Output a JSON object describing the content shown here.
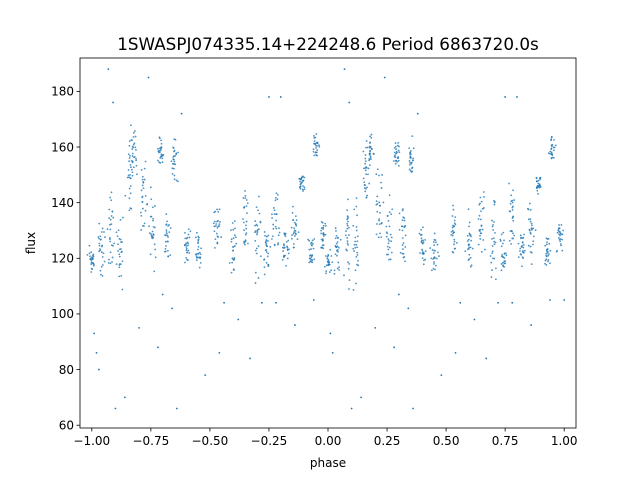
{
  "chart_data": {
    "type": "scatter",
    "title": "1SWASPJ074335.14+224248.6 Period 6863720.0s",
    "xlabel": "phase",
    "ylabel": "flux",
    "xlim": [
      -1.05,
      1.05
    ],
    "ylim": [
      59,
      192
    ],
    "xticks": [
      -1.0,
      -0.75,
      -0.5,
      -0.25,
      0.0,
      0.25,
      0.5,
      0.75,
      1.0
    ],
    "xtick_labels": [
      "−1.00",
      "−0.75",
      "−0.50",
      "−0.25",
      "0.00",
      "0.25",
      "0.50",
      "0.75",
      "1.00"
    ],
    "yticks": [
      60,
      80,
      100,
      120,
      140,
      160,
      180
    ],
    "ytick_labels": [
      "60",
      "80",
      "100",
      "120",
      "140",
      "160",
      "180"
    ],
    "grid": false,
    "marker_color": "#1f77b4",
    "series": [
      {
        "clusters": [
          {
            "x": -1.0,
            "y": 119,
            "spread": 4
          },
          {
            "x": -0.96,
            "y": 124,
            "spread": 8
          },
          {
            "x": -0.92,
            "y": 128,
            "spread": 12
          },
          {
            "x": -0.88,
            "y": 124,
            "spread": 10
          },
          {
            "x": -0.84,
            "y": 150,
            "spread": 12
          },
          {
            "x": -0.82,
            "y": 158,
            "spread": 6
          },
          {
            "x": -0.78,
            "y": 140,
            "spread": 10
          },
          {
            "x": -0.74,
            "y": 130,
            "spread": 10
          },
          {
            "x": -0.71,
            "y": 158,
            "spread": 4
          },
          {
            "x": -0.68,
            "y": 128,
            "spread": 8
          },
          {
            "x": -0.65,
            "y": 155,
            "spread": 6
          },
          {
            "x": -0.6,
            "y": 124,
            "spread": 6
          },
          {
            "x": -0.55,
            "y": 122,
            "spread": 6
          },
          {
            "x": -0.47,
            "y": 130,
            "spread": 8
          },
          {
            "x": -0.4,
            "y": 124,
            "spread": 8
          },
          {
            "x": -0.35,
            "y": 134,
            "spread": 10
          },
          {
            "x": -0.3,
            "y": 128,
            "spread": 12
          },
          {
            "x": -0.26,
            "y": 122,
            "spread": 8
          },
          {
            "x": -0.22,
            "y": 135,
            "spread": 10
          },
          {
            "x": -0.18,
            "y": 124,
            "spread": 6
          },
          {
            "x": -0.14,
            "y": 130,
            "spread": 8
          },
          {
            "x": -0.11,
            "y": 147,
            "spread": 3
          },
          {
            "x": -0.07,
            "y": 122,
            "spread": 5
          },
          {
            "x": -0.05,
            "y": 160,
            "spread": 4
          },
          {
            "x": -0.02,
            "y": 128,
            "spread": 5
          },
          {
            "x": 0.0,
            "y": 119,
            "spread": 4
          },
          {
            "x": 0.04,
            "y": 124,
            "spread": 8
          },
          {
            "x": 0.08,
            "y": 128,
            "spread": 12
          },
          {
            "x": 0.12,
            "y": 124,
            "spread": 10
          },
          {
            "x": 0.16,
            "y": 150,
            "spread": 12
          },
          {
            "x": 0.18,
            "y": 158,
            "spread": 6
          },
          {
            "x": 0.22,
            "y": 140,
            "spread": 10
          },
          {
            "x": 0.26,
            "y": 130,
            "spread": 10
          },
          {
            "x": 0.29,
            "y": 158,
            "spread": 4
          },
          {
            "x": 0.32,
            "y": 128,
            "spread": 8
          },
          {
            "x": 0.35,
            "y": 155,
            "spread": 6
          },
          {
            "x": 0.4,
            "y": 124,
            "spread": 6
          },
          {
            "x": 0.45,
            "y": 122,
            "spread": 6
          },
          {
            "x": 0.53,
            "y": 130,
            "spread": 8
          },
          {
            "x": 0.6,
            "y": 124,
            "spread": 8
          },
          {
            "x": 0.65,
            "y": 134,
            "spread": 10
          },
          {
            "x": 0.7,
            "y": 128,
            "spread": 12
          },
          {
            "x": 0.74,
            "y": 122,
            "spread": 8
          },
          {
            "x": 0.78,
            "y": 135,
            "spread": 10
          },
          {
            "x": 0.82,
            "y": 124,
            "spread": 6
          },
          {
            "x": 0.86,
            "y": 130,
            "spread": 8
          },
          {
            "x": 0.89,
            "y": 147,
            "spread": 3
          },
          {
            "x": 0.93,
            "y": 122,
            "spread": 5
          },
          {
            "x": 0.95,
            "y": 160,
            "spread": 4
          },
          {
            "x": 0.98,
            "y": 128,
            "spread": 5
          }
        ],
        "outliers": [
          {
            "x": -0.99,
            "y": 93
          },
          {
            "x": -0.98,
            "y": 86
          },
          {
            "x": -0.97,
            "y": 80
          },
          {
            "x": -0.93,
            "y": 188
          },
          {
            "x": -0.91,
            "y": 176
          },
          {
            "x": -0.9,
            "y": 66
          },
          {
            "x": -0.86,
            "y": 70
          },
          {
            "x": -0.8,
            "y": 95
          },
          {
            "x": -0.76,
            "y": 185
          },
          {
            "x": -0.72,
            "y": 88
          },
          {
            "x": -0.7,
            "y": 107
          },
          {
            "x": -0.66,
            "y": 102
          },
          {
            "x": -0.64,
            "y": 66
          },
          {
            "x": -0.62,
            "y": 172
          },
          {
            "x": -0.52,
            "y": 78
          },
          {
            "x": -0.46,
            "y": 86
          },
          {
            "x": -0.44,
            "y": 104
          },
          {
            "x": -0.38,
            "y": 98
          },
          {
            "x": -0.33,
            "y": 84
          },
          {
            "x": -0.28,
            "y": 104
          },
          {
            "x": -0.25,
            "y": 178
          },
          {
            "x": -0.22,
            "y": 104
          },
          {
            "x": -0.2,
            "y": 178
          },
          {
            "x": -0.14,
            "y": 96
          },
          {
            "x": -0.06,
            "y": 105
          },
          {
            "x": 0.01,
            "y": 93
          },
          {
            "x": 0.02,
            "y": 86
          },
          {
            "x": 0.07,
            "y": 188
          },
          {
            "x": 0.09,
            "y": 176
          },
          {
            "x": 0.1,
            "y": 66
          },
          {
            "x": 0.14,
            "y": 70
          },
          {
            "x": 0.2,
            "y": 95
          },
          {
            "x": 0.24,
            "y": 185
          },
          {
            "x": 0.28,
            "y": 88
          },
          {
            "x": 0.3,
            "y": 107
          },
          {
            "x": 0.34,
            "y": 102
          },
          {
            "x": 0.36,
            "y": 66
          },
          {
            "x": 0.38,
            "y": 172
          },
          {
            "x": 0.48,
            "y": 78
          },
          {
            "x": 0.54,
            "y": 86
          },
          {
            "x": 0.56,
            "y": 104
          },
          {
            "x": 0.62,
            "y": 98
          },
          {
            "x": 0.67,
            "y": 84
          },
          {
            "x": 0.72,
            "y": 104
          },
          {
            "x": 0.75,
            "y": 178
          },
          {
            "x": 0.78,
            "y": 104
          },
          {
            "x": 0.8,
            "y": 178
          },
          {
            "x": 0.86,
            "y": 96
          },
          {
            "x": 0.94,
            "y": 105
          },
          {
            "x": 1.0,
            "y": 105
          }
        ]
      }
    ]
  }
}
